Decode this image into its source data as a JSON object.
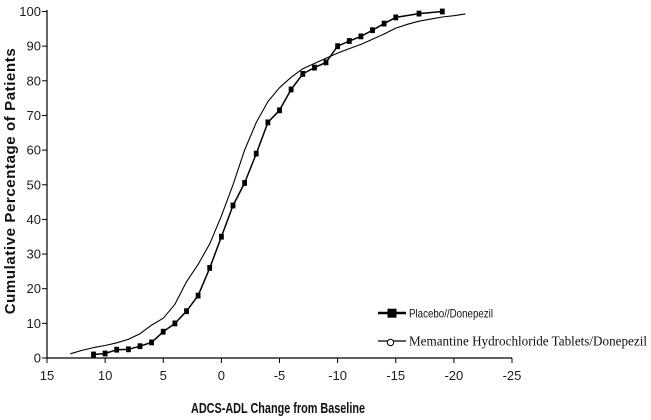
{
  "figure": {
    "background_color": "#ffffff",
    "line_color": "#000000"
  },
  "chart_data": {
    "type": "line",
    "title": "",
    "xlabel": "ADCS-ADL Change from Baseline",
    "ylabel": "Cumulative Percentage of Patients",
    "x_axis": {
      "range": [
        15,
        -25
      ],
      "reversed": true,
      "ticks": [
        15,
        10,
        5,
        0,
        -5,
        -10,
        -15,
        -20,
        -25
      ]
    },
    "y_axis": {
      "range": [
        0,
        100
      ],
      "ticks": [
        0,
        10,
        20,
        30,
        40,
        50,
        60,
        70,
        80,
        90,
        100
      ]
    },
    "grid": false,
    "legend_position": "lower-right",
    "series": [
      {
        "name": "Placebo//Donepezil",
        "marker": "filled-square",
        "line_width": "medium",
        "color": "#000000",
        "points": [
          [
            11,
            1
          ],
          [
            10,
            1.3
          ],
          [
            9,
            2.4
          ],
          [
            8,
            2.5
          ],
          [
            7,
            3.4
          ],
          [
            6,
            4.5
          ],
          [
            5,
            7.6
          ],
          [
            4,
            10
          ],
          [
            3,
            13.5
          ],
          [
            2,
            18
          ],
          [
            1,
            26
          ],
          [
            0,
            35
          ],
          [
            -1,
            44
          ],
          [
            -2,
            50.5
          ],
          [
            -3,
            59
          ],
          [
            -4,
            68
          ],
          [
            -5,
            71.5
          ],
          [
            -6,
            77.5
          ],
          [
            -7,
            82
          ],
          [
            -8,
            83.8
          ],
          [
            -9,
            85.3
          ],
          [
            -10,
            90
          ],
          [
            -11,
            91.5
          ],
          [
            -12,
            92.8
          ],
          [
            -13,
            94.6
          ],
          [
            -14,
            96.5
          ],
          [
            -15,
            98.3
          ],
          [
            -17,
            99.4
          ],
          [
            -19,
            100
          ]
        ]
      },
      {
        "name": "Memantine Hydrochloride Tablets/Donepezil",
        "marker": "open-circle",
        "line_width": "thin",
        "color": "#000000",
        "points": [
          [
            13,
            1.2
          ],
          [
            12,
            2.2
          ],
          [
            11,
            3
          ],
          [
            10,
            3.6
          ],
          [
            9,
            4.4
          ],
          [
            8,
            5.4
          ],
          [
            7,
            7
          ],
          [
            6,
            9.5
          ],
          [
            5,
            11.5
          ],
          [
            4,
            15.5
          ],
          [
            3,
            22
          ],
          [
            2,
            27
          ],
          [
            1,
            33
          ],
          [
            0,
            41
          ],
          [
            -1,
            50
          ],
          [
            -2,
            60
          ],
          [
            -3,
            68
          ],
          [
            -4,
            74
          ],
          [
            -5,
            78
          ],
          [
            -6,
            81
          ],
          [
            -7,
            83.5
          ],
          [
            -8,
            85
          ],
          [
            -9,
            86.5
          ],
          [
            -10,
            88
          ],
          [
            -11,
            89.3
          ],
          [
            -12,
            90.5
          ],
          [
            -13,
            92
          ],
          [
            -14,
            93.5
          ],
          [
            -15,
            95.2
          ],
          [
            -16,
            96.3
          ],
          [
            -17,
            97.2
          ],
          [
            -18,
            97.8
          ],
          [
            -19,
            98.4
          ],
          [
            -20,
            98.8
          ],
          [
            -21,
            99.3
          ]
        ]
      }
    ]
  }
}
